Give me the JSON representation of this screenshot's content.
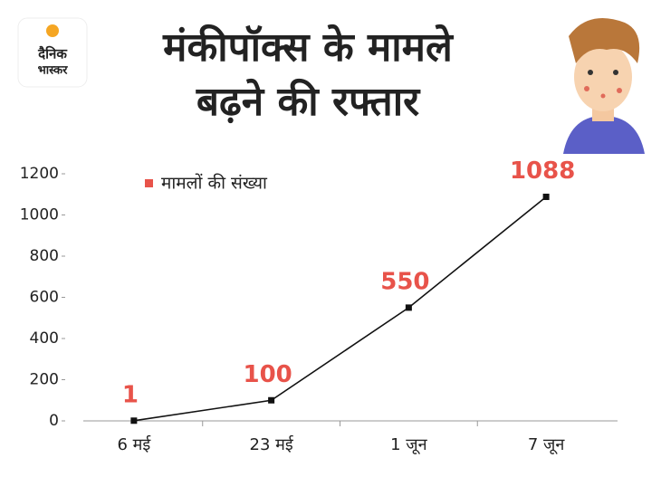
{
  "header": {
    "logo": [
      "दैनिक",
      "भास्कर"
    ]
  },
  "chart_data": {
    "type": "line",
    "title": [
      "मंकीपॉक्स के मामले",
      "बढ़ने की रफ्तार"
    ],
    "categories": [
      "6 मई",
      "23 मई",
      "1 जून",
      "7 जून"
    ],
    "series": [
      {
        "name": "मामलों की संख्या",
        "color": "#111111",
        "label_color": "#e8534a",
        "legend_color": "#e8534a",
        "values": [
          1,
          100,
          550,
          1088
        ]
      }
    ],
    "ylim": [
      0,
      1200
    ],
    "yticks": [
      0,
      200,
      400,
      600,
      800,
      1000,
      1200
    ],
    "grid": false
  }
}
